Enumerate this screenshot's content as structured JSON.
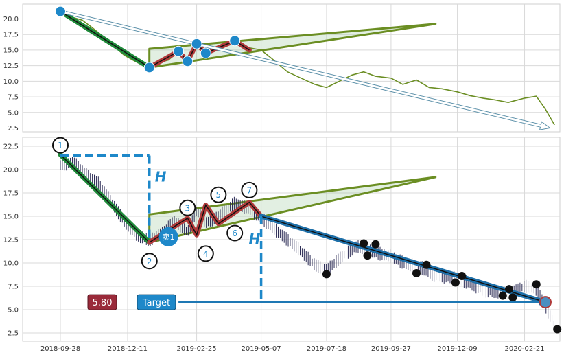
{
  "chart_data": [
    {
      "panel": "top",
      "type": "line",
      "title": "",
      "xlabel": "",
      "ylabel": "",
      "ylim": [
        2.0,
        22.0
      ],
      "yticks": [
        "2.5",
        "5.0",
        "7.5",
        "10.0",
        "12.5",
        "15.0",
        "17.5",
        "20.0"
      ],
      "grid": true,
      "series": [
        {
          "color": "#6b8e23",
          "points": [
            [
              "2018-09-28",
              21.0
            ],
            [
              "2018-10-10",
              20.3
            ],
            [
              "2018-10-22",
              19.8
            ],
            [
              "2018-11-02",
              18.6
            ],
            [
              "2018-11-14",
              17.2
            ],
            [
              "2018-11-26",
              15.6
            ],
            [
              "2018-12-07",
              14.2
            ],
            [
              "2018-12-18",
              13.3
            ],
            [
              "2018-12-28",
              12.5
            ],
            [
              "2019-01-04",
              12.3
            ],
            [
              "2019-01-15",
              13.0
            ],
            [
              "2019-01-25",
              13.4
            ],
            [
              "2019-02-05",
              14.8
            ],
            [
              "2019-02-15",
              13.5
            ],
            [
              "2019-02-25",
              16.0
            ],
            [
              "2019-03-07",
              14.5
            ],
            [
              "2019-03-18",
              15.3
            ],
            [
              "2019-03-28",
              15.9
            ],
            [
              "2019-04-08",
              16.5
            ],
            [
              "2019-04-19",
              15.5
            ],
            [
              "2019-05-07",
              15.0
            ],
            [
              "2019-05-20",
              13.5
            ],
            [
              "2019-06-05",
              11.5
            ],
            [
              "2019-06-20",
              10.5
            ],
            [
              "2019-07-05",
              9.5
            ],
            [
              "2019-07-18",
              9.0
            ],
            [
              "2019-08-01",
              10.0
            ],
            [
              "2019-08-15",
              11.0
            ],
            [
              "2019-08-28",
              11.5
            ],
            [
              "2019-09-10",
              10.8
            ],
            [
              "2019-09-27",
              10.5
            ],
            [
              "2019-10-10",
              9.5
            ],
            [
              "2019-10-25",
              10.2
            ],
            [
              "2019-11-08",
              9.0
            ],
            [
              "2019-11-22",
              8.8
            ],
            [
              "2019-12-09",
              8.3
            ],
            [
              "2019-12-23",
              7.7
            ],
            [
              "2020-01-06",
              7.3
            ],
            [
              "2020-01-20",
              7.0
            ],
            [
              "2020-02-03",
              6.6
            ],
            [
              "2020-02-21",
              7.3
            ],
            [
              "2020-03-05",
              7.6
            ],
            [
              "2020-03-15",
              5.5
            ],
            [
              "2020-03-25",
              3.0
            ]
          ]
        }
      ],
      "annotations": [
        {
          "kind": "wave",
          "color": "#1f8a3a",
          "points": [
            [
              "2018-09-28",
              21.2
            ],
            [
              "2019-01-04",
              12.2
            ]
          ]
        },
        {
          "kind": "wave",
          "color": "#b03a3a",
          "points": [
            [
              "2019-01-04",
              12.2
            ],
            [
              "2019-02-05",
              14.8
            ],
            [
              "2019-02-15",
              13.2
            ],
            [
              "2019-02-25",
              16.0
            ],
            [
              "2019-03-07",
              14.5
            ],
            [
              "2019-04-08",
              16.5
            ],
            [
              "2019-04-24",
              15.0
            ]
          ]
        },
        {
          "kind": "triangle",
          "color": "#6b8e23",
          "points": [
            [
              "2019-01-04",
              12.2
            ],
            [
              "2019-01-04",
              15.2
            ],
            [
              "2019-11-15",
              19.2
            ]
          ]
        },
        {
          "kind": "trend-arrow",
          "color": "#5a8fa8",
          "from": [
            "2018-09-28",
            21.2
          ],
          "to": [
            "2020-03-20",
            2.5
          ]
        },
        {
          "kind": "markers",
          "color": "#1e88c9",
          "points": [
            [
              "2018-09-28",
              21.2
            ],
            [
              "2019-01-04",
              12.2
            ],
            [
              "2019-02-05",
              14.8
            ],
            [
              "2019-02-15",
              13.2
            ],
            [
              "2019-02-25",
              16.0
            ],
            [
              "2019-03-07",
              14.5
            ],
            [
              "2019-04-08",
              16.5
            ]
          ]
        }
      ]
    },
    {
      "panel": "bottom",
      "type": "candlestick",
      "title": "",
      "xlabel": "",
      "ylabel": "",
      "ylim": [
        1.8,
        23.8
      ],
      "yticks": [
        "2.5",
        "5.0",
        "7.5",
        "10.0",
        "12.5",
        "15.0",
        "17.5",
        "20.0",
        "22.5"
      ],
      "xticks": [
        "2018-09-28",
        "2018-12-11",
        "2019-02-25",
        "2019-05-07",
        "2019-07-18",
        "2019-09-27",
        "2019-12-09",
        "2020-02-21"
      ],
      "grid": true,
      "price_path": [
        [
          "2018-09-28",
          20.5
        ],
        [
          "2018-10-12",
          20.8
        ],
        [
          "2018-10-26",
          19.5
        ],
        [
          "2018-11-09",
          18.5
        ],
        [
          "2018-11-23",
          16.5
        ],
        [
          "2018-12-07",
          14.5
        ],
        [
          "2018-12-21",
          13.0
        ],
        [
          "2019-01-04",
          12.4
        ],
        [
          "2019-01-18",
          13.2
        ],
        [
          "2019-02-01",
          14.5
        ],
        [
          "2019-02-15",
          13.3
        ],
        [
          "2019-02-25",
          15.6
        ],
        [
          "2019-03-07",
          14.3
        ],
        [
          "2019-03-21",
          15.0
        ],
        [
          "2019-04-08",
          16.4
        ],
        [
          "2019-04-24",
          15.8
        ],
        [
          "2019-05-07",
          14.8
        ],
        [
          "2019-05-27",
          13.2
        ],
        [
          "2019-06-17",
          11.5
        ],
        [
          "2019-07-05",
          9.8
        ],
        [
          "2019-07-18",
          9.2
        ],
        [
          "2019-08-05",
          10.8
        ],
        [
          "2019-08-21",
          11.8
        ],
        [
          "2019-09-06",
          11.2
        ],
        [
          "2019-09-27",
          10.7
        ],
        [
          "2019-10-15",
          9.8
        ],
        [
          "2019-10-29",
          9.6
        ],
        [
          "2019-11-12",
          8.7
        ],
        [
          "2019-11-28",
          8.5
        ],
        [
          "2019-12-09",
          8.3
        ],
        [
          "2019-12-23",
          7.8
        ],
        [
          "2020-01-08",
          7.0
        ],
        [
          "2020-01-22",
          6.9
        ],
        [
          "2020-02-07",
          6.8
        ],
        [
          "2020-02-21",
          7.5
        ],
        [
          "2020-03-05",
          7.2
        ],
        [
          "2020-03-15",
          5.4
        ],
        [
          "2020-03-25",
          3.2
        ]
      ],
      "waves": [
        {
          "color": "#1f8a3a",
          "points": [
            [
              "2018-09-28",
              21.6
            ],
            [
              "2019-01-04",
              12.2
            ]
          ]
        },
        {
          "color": "#b03a3a",
          "points": [
            [
              "2019-01-04",
              12.2
            ],
            [
              "2019-02-15",
              14.8
            ],
            [
              "2019-02-25",
              13.0
            ],
            [
              "2019-03-07",
              16.2
            ],
            [
              "2019-03-21",
              14.2
            ],
            [
              "2019-04-24",
              16.5
            ],
            [
              "2019-05-07",
              15.0
            ]
          ]
        },
        {
          "color": "#1e6fa8",
          "points": [
            [
              "2019-05-07",
              15.0
            ],
            [
              "2020-03-15",
              5.8
            ]
          ]
        }
      ],
      "triangle": {
        "color": "#6b8e23",
        "points": [
          [
            "2019-01-04",
            12.2
          ],
          [
            "2019-01-04",
            15.2
          ],
          [
            "2019-11-15",
            19.2
          ]
        ]
      },
      "wave_labels": [
        {
          "label": "1",
          "date": "2018-09-28",
          "value": 22.6
        },
        {
          "label": "2",
          "date": "2019-01-04",
          "value": 10.2
        },
        {
          "label": "3",
          "date": "2019-02-15",
          "value": 15.9
        },
        {
          "label": "4",
          "date": "2019-03-07",
          "value": 11.0
        },
        {
          "label": "5",
          "date": "2019-03-21",
          "value": 17.3
        },
        {
          "label": "6",
          "date": "2019-04-08",
          "value": 13.2
        },
        {
          "label": "7",
          "date": "2019-04-24",
          "value": 17.8
        }
      ],
      "black_markers": [
        [
          "2019-07-18",
          8.8
        ],
        [
          "2019-08-28",
          12.1
        ],
        [
          "2019-09-01",
          10.8
        ],
        [
          "2019-09-10",
          12.0
        ],
        [
          "2019-10-25",
          8.9
        ],
        [
          "2019-11-05",
          9.8
        ],
        [
          "2019-12-07",
          7.9
        ],
        [
          "2019-12-14",
          8.6
        ],
        [
          "2020-01-28",
          6.5
        ],
        [
          "2020-02-04",
          7.2
        ],
        [
          "2020-02-08",
          6.3
        ],
        [
          "2020-03-05",
          7.7
        ],
        [
          "2020-03-28",
          2.9
        ]
      ],
      "sell_marker": {
        "label": "卖1",
        "date": "2019-01-25",
        "value": 12.8
      },
      "target_marker": {
        "date": "2020-03-15",
        "value": 5.8
      },
      "height_markers": [
        {
          "label": "H",
          "from": [
            "2019-01-04",
            21.5
          ],
          "to": [
            "2019-01-04",
            12.2
          ]
        },
        {
          "label": "H",
          "from": [
            "2019-05-07",
            15.0
          ],
          "to": [
            "2019-05-07",
            5.8
          ]
        }
      ],
      "target_line": {
        "from": [
          "2019-02-05",
          5.8
        ],
        "to": [
          "2020-03-15",
          5.8
        ]
      },
      "labels": {
        "target_value": "5.80",
        "target": "Target"
      }
    }
  ]
}
